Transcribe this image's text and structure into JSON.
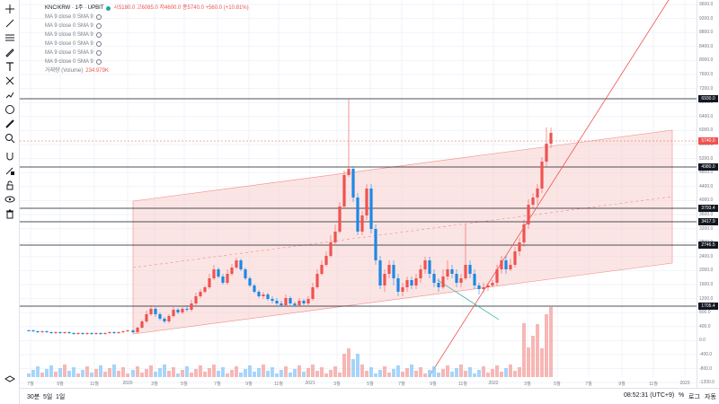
{
  "legend": {
    "symbol": "KNC/KRW · 1주 · UPBIT",
    "ohlc": "시5180.0 고6085.0 저4600.0 종5740.0 +560.0 (+10.81%)",
    "indicators": [
      "MA 9 close 0 SMA 9",
      "MA 9 close 0 SMA 9",
      "MA 9 close 0 SMA 9",
      "MA 9 close 0 SMA 9",
      "MA 9 close 0 SMA 9",
      "MA 9 close 0 SMA 9"
    ],
    "volume_label": "거래량 (Volume)",
    "volume_value": "234.979K"
  },
  "price_axis_labels": [
    "9600.0",
    "9200.0",
    "8800.0",
    "8400.0",
    "8000.0",
    "7600.0",
    "7200.0",
    "6800.0",
    "6400.0",
    "6000.0",
    "5600.0",
    "5200.0",
    "4800.0",
    "4400.0",
    "4000.0",
    "3600.0",
    "3200.0",
    "2800.0",
    "2400.0",
    "2000.0",
    "1600.0",
    "1200.0",
    "800.0",
    "400.0",
    "0.0",
    "-400.0",
    "-800.0",
    "-1200.0"
  ],
  "price_tags": [
    {
      "label": "6930.0",
      "color": "#131722"
    },
    {
      "label": "5740.0",
      "color": "#ef5350"
    },
    {
      "label": "4980.0",
      "color": "#131722"
    },
    {
      "label": "3793.4",
      "color": "#131722"
    },
    {
      "label": "3417.9",
      "color": "#131722"
    },
    {
      "label": "2746.5",
      "color": "#131722"
    },
    {
      "label": "1705.4",
      "color": "#131722"
    }
  ],
  "time_axis_labels": [
    "7월",
    "9월",
    "11월",
    "2020",
    "3월",
    "5월",
    "7월",
    "9월",
    "11월",
    "2021",
    "3월",
    "5월",
    "7월",
    "9월",
    "11월",
    "2022",
    "3월",
    "5월",
    "7월",
    "9월",
    "11월",
    "2023"
  ],
  "bottom": {
    "ranges": [
      "30분",
      "5일",
      "1일"
    ],
    "clock": "08:52:31 (UTC+9)",
    "percent": "%",
    "log": "로그",
    "auto": "자동"
  },
  "colors": {
    "up": "#ef5350",
    "down": "#1e88e5",
    "channel": "#f7c6c4"
  },
  "icons": [
    "crosshair-icon",
    "trend-line-icon",
    "fib-icon",
    "brush-icon",
    "text-icon",
    "pattern-icon",
    "forecast-icon",
    "emoji-icon",
    "ruler-icon",
    "zoom-icon",
    "magnet-icon",
    "lock-draw-icon",
    "lock-icon",
    "eye-icon",
    "trash-icon",
    "layers-icon",
    "settings-icon"
  ]
}
